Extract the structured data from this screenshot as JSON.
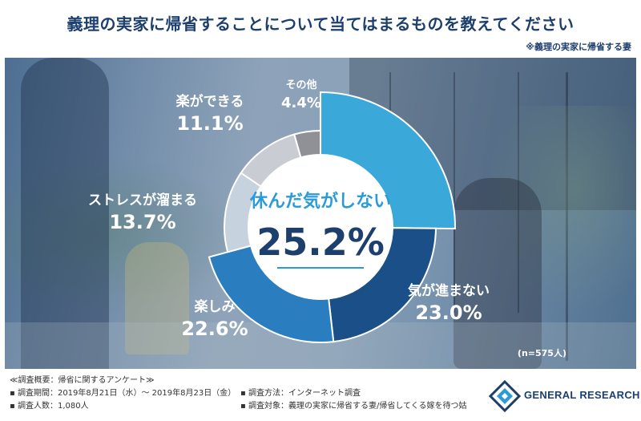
{
  "header": {
    "title": "義理の実家に帰省することについて当てはまるものを教えてください",
    "subtitle": "※義理の実家に帰省する妻"
  },
  "chart_data": {
    "type": "pie",
    "categories": [
      "休んだ気がしない",
      "気が進まない",
      "楽しみ",
      "ストレスが溜まる",
      "楽ができる",
      "その他"
    ],
    "values": [
      25.2,
      23.0,
      22.6,
      13.7,
      11.1,
      4.4
    ],
    "value_labels": [
      "25.2%",
      "23.0%",
      "22.6%",
      "13.7%",
      "11.1%",
      "4.4%"
    ],
    "colors": [
      "#3aa8d8",
      "#1b4f88",
      "#2a7dbf",
      "#c6d3df",
      "#c9cdd3",
      "#8f9196"
    ],
    "center_label": "休んだ気がしない",
    "center_value": "25.2%",
    "sample_note": "(n=575人)"
  },
  "footer": {
    "survey_title": "≪調査概要：帰省に関するアンケート≫",
    "period": "▪ 調査期間：2019年8月21日（水）～ 2019年8月23日（金）",
    "count": "▪ 調査人数：1,080人",
    "method": "▪ 調査方法：インターネット調査",
    "target": "▪ 調査対象：義理の実家に帰省する妻/帰省してくる嫁を待つ姑",
    "logo": "GENERAL RESEARCH"
  }
}
